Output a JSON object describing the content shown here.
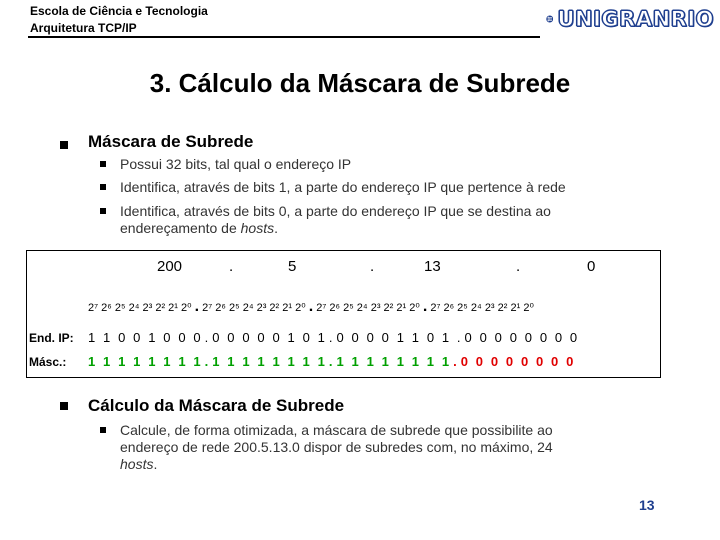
{
  "header": {
    "line1": "Escola de Ciência e Tecnologia",
    "line2": "Arquitetura TCP/IP",
    "logo_text": "UNIGRANRIO"
  },
  "title": "3. Cálculo da Máscara de Subrede",
  "section1": {
    "heading": "Máscara de Subrede",
    "bullets": [
      "Possui 32 bits, tal qual o endereço IP",
      "Identifica, através de bits 1, a parte do endereço IP que pertence à rede",
      "Identifica, através de bits 0, a parte do endereço IP que se destina ao",
      "endereçamento de ",
      "hosts",
      "."
    ]
  },
  "table": {
    "octets": [
      "200",
      ".",
      "5",
      ".",
      "13",
      ".",
      "0"
    ],
    "powers": "2⁷ 2⁶ 2⁵ 2⁴ 2³ 2² 2¹ 2⁰",
    "dot": ".",
    "end_ip_label": "End. IP:",
    "end_ip_bits": [
      "1  1  0  0  1  0  0  0",
      ". 0  0  0  0  0  1",
      "  0  1",
      " . 0  0  0  0  1  1  0  1",
      "  . 0  0  0  0  0  0  0  0"
    ],
    "mask_label": "Másc.:",
    "mask_ones": "1  1  1  1  1  1  1  1 . 1  1  1  1  1  1  1  1 . 1  1  1  1  1  1  1  1",
    "mask_zeros": ". 0  0  0  0  0  0  0  0"
  },
  "section2": {
    "heading": "Cálculo da Máscara de Subrede",
    "bullet_line1": "Calcule, de forma otimizada, a máscara de subrede que possibilite ao",
    "bullet_line2": "endereço de rede 200.5.13.0 dispor de subredes com, no máximo, 24",
    "bullet_italic": "hosts",
    "bullet_end": "."
  },
  "page_number": "13",
  "colors": {
    "brand": "#1f3f8f",
    "ones": "#00a000",
    "zeros": "#e00000"
  }
}
